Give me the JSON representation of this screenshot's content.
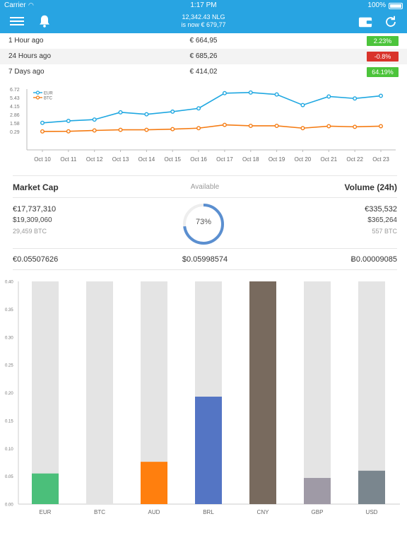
{
  "status_bar": {
    "carrier": "Carrier",
    "time": "1:17 PM",
    "battery": "100%"
  },
  "header": {
    "balance": "12,342.43 NLG",
    "value": "is now € 679,77"
  },
  "price_rows": [
    {
      "label": "1 Hour ago",
      "value": "€ 664,95",
      "change": "2.23%",
      "color": "#4cc43b"
    },
    {
      "label": "24 Hours ago",
      "value": "€ 685,26",
      "change": "-0.8%",
      "color": "#d9342b"
    },
    {
      "label": "7 Days ago",
      "value": "€ 414,02",
      "change": "64.19%",
      "color": "#4cc43b"
    }
  ],
  "stats": {
    "market_cap_label": "Market Cap",
    "available_label": "Available",
    "volume_label": "Volume (24h)",
    "market_cap_eur": "€17,737,310",
    "market_cap_usd": "$19,309,060",
    "market_cap_btc": "29,459 BTC",
    "available_pct": "73%",
    "available_fraction": 0.73,
    "volume_eur": "€335,532",
    "volume_usd": "$365,264",
    "volume_btc": "557 BTC",
    "price_eur": "€0.05507626",
    "price_usd": "$0.05998574",
    "price_btc": "Ƀ0.00009085"
  },
  "colors": {
    "accent": "#28a4e2",
    "eur_line": "#1ea7e1",
    "btc_line": "#f57c14",
    "bar_track": "#e4e4e4",
    "donut": "#5b8fd0"
  },
  "chart_data": [
    {
      "type": "line",
      "x": [
        "Oct 10",
        "Oct 11",
        "Oct 12",
        "Oct 13",
        "Oct 14",
        "Oct 15",
        "Oct 16",
        "Oct 17",
        "Oct 18",
        "Oct 19",
        "Oct 20",
        "Oct 21",
        "Oct 22",
        "Oct 23"
      ],
      "yticks": [
        "6.72",
        "5.43",
        "4.15",
        "2.86",
        "1.58",
        "0.29"
      ],
      "ylim": [
        0.29,
        6.72
      ],
      "legend": "top-left",
      "grid": false,
      "series": [
        {
          "name": "EUR",
          "color": "#1ea7e1",
          "values": [
            1.6,
            1.9,
            2.1,
            3.2,
            2.9,
            3.3,
            3.8,
            6.1,
            6.2,
            5.9,
            4.3,
            5.6,
            5.3,
            5.7
          ]
        },
        {
          "name": "BTC",
          "color": "#f57c14",
          "values": [
            0.3,
            0.32,
            0.45,
            0.55,
            0.55,
            0.65,
            0.8,
            1.3,
            1.15,
            1.15,
            0.8,
            1.1,
            1.0,
            1.1
          ]
        }
      ]
    },
    {
      "type": "bar",
      "categories": [
        "EUR",
        "BTC",
        "AUD",
        "BRL",
        "CNY",
        "GBP",
        "USD"
      ],
      "values": [
        0.055,
        0.0,
        0.076,
        0.193,
        0.4,
        0.047,
        0.06
      ],
      "colors": [
        "#4bbf7a",
        "#e4e4e4",
        "#ff7f0e",
        "#5475c4",
        "#786a5e",
        "#9f9aa6",
        "#7a868e"
      ],
      "yticks": [
        "0.40",
        "0.35",
        "0.30",
        "0.25",
        "0.20",
        "0.15",
        "0.10",
        "0.05",
        "0.00"
      ],
      "ylim": [
        0,
        0.4
      ],
      "grid": false
    }
  ]
}
